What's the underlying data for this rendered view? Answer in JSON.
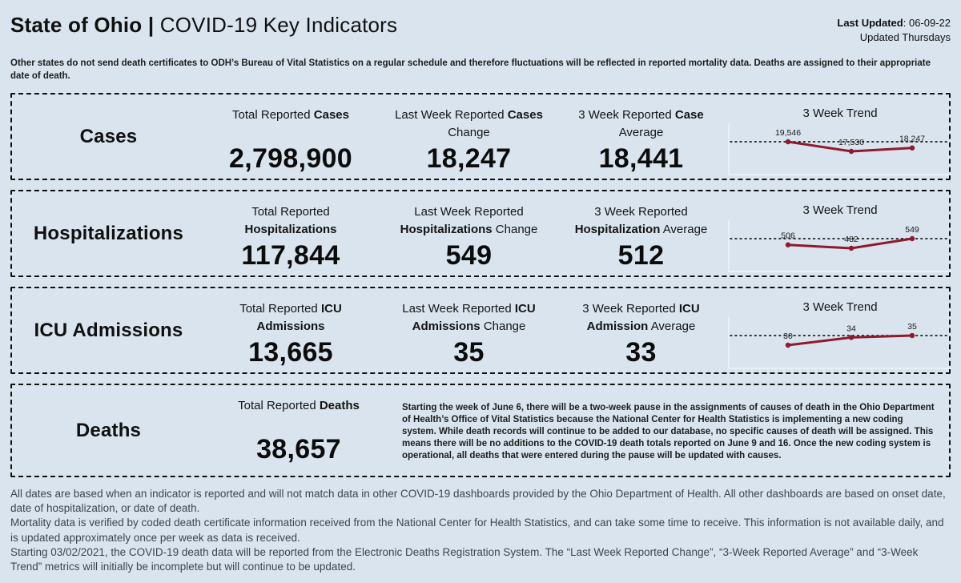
{
  "header": {
    "title_bold": "State of Ohio",
    "title_separator": "|",
    "title_rest": "COVID-19 Key Indicators",
    "last_updated_label": "Last Updated",
    "last_updated_value": ": 06-09-22",
    "updated_frequency": "Updated Thursdays"
  },
  "disclaimer": "Other states do not send death certificates to ODH’s Bureau of Vital Statistics on a regular schedule and therefore fluctuations will be reflected in reported mortality data. Deaths are assigned to their appropriate date of death.",
  "rows": [
    {
      "label": "Cases",
      "trend_title": "3 Week Trend",
      "metrics": [
        {
          "title_pre": "Total Reported ",
          "title_bold": "Cases",
          "title_post": "",
          "value": "2,798,900"
        },
        {
          "title_pre": "Last Week Reported ",
          "title_bold": "Cases",
          "title_post": " Change",
          "value": "18,247"
        },
        {
          "title_pre": "3 Week Reported ",
          "title_bold": "Case",
          "title_post": " Average",
          "value": "18,441"
        }
      ]
    },
    {
      "label": "Hospitalizations",
      "trend_title": "3 Week Trend",
      "metrics": [
        {
          "title_pre": "Total Reported ",
          "title_bold": "Hospitalizations",
          "title_post": "",
          "value": "117,844"
        },
        {
          "title_pre": "Last Week Reported ",
          "title_bold": "Hospitalizations",
          "title_post": " Change",
          "value": "549"
        },
        {
          "title_pre": "3 Week Reported ",
          "title_bold": "Hospitalization",
          "title_post": " Average",
          "value": "512"
        }
      ]
    },
    {
      "label": "ICU Admissions",
      "trend_title": "3 Week Trend",
      "metrics": [
        {
          "title_pre": "Total Reported ",
          "title_bold": "ICU Admissions",
          "title_post": "",
          "value": "13,665"
        },
        {
          "title_pre": "Last Week Reported ",
          "title_bold": "ICU Admissions",
          "title_post": " Change",
          "value": "35"
        },
        {
          "title_pre": "3 Week Reported ",
          "title_bold": "ICU Admission",
          "title_post": " Average",
          "value": "33"
        }
      ]
    },
    {
      "label": "Deaths",
      "metrics": [
        {
          "title_pre": "Total Reported ",
          "title_bold": "Deaths",
          "title_post": "",
          "value": "38,657"
        }
      ],
      "note": "Starting the week of June 6, there will be a two-week pause in the assignments of causes of death in the Ohio Department of Health’s Office of Vital Statistics because the National Center for Health Statistics is implementing a new coding system. While death records will continue to be added to our database, no specific causes of death will be assigned. This means there will be no additions to the COVID-19 death totals reported on June 9 and 16. Once the new coding system is operational, all deaths that were entered during the pause will be updated with causes."
    }
  ],
  "chart_data": [
    {
      "type": "line",
      "row": "Cases",
      "title": "3 Week Trend",
      "values": [
        19546,
        17530,
        18247
      ],
      "labels": [
        "19,546",
        "17,530",
        "18,247"
      ],
      "reference_line": "dotted horizontal at max value",
      "line_color": "#8f1a2e",
      "dot_color": "#8f1a2e",
      "label_color": "#1b1b1b",
      "axis_color": "#eef5fa"
    },
    {
      "type": "line",
      "row": "Hospitalizations",
      "title": "3 Week Trend",
      "values": [
        506,
        482,
        549
      ],
      "labels": [
        "506",
        "482",
        "549"
      ],
      "reference_line": "dotted horizontal at max value",
      "line_color": "#8f1a2e",
      "dot_color": "#8f1a2e",
      "label_color": "#1b1b1b",
      "axis_color": "#eef5fa"
    },
    {
      "type": "line",
      "row": "ICU Admissions",
      "title": "3 Week Trend",
      "values": [
        30,
        34,
        35
      ],
      "labels": [
        "30",
        "34",
        "35"
      ],
      "reference_line": "dotted horizontal at max value",
      "line_color": "#8f1a2e",
      "dot_color": "#8f1a2e",
      "label_color": "#1b1b1b",
      "axis_color": "#eef5fa"
    }
  ],
  "footer": {
    "paragraphs": [
      "All dates are based when an indicator is reported and will not match data in other COVID-19 dashboards provided by the Ohio Department of Health. All other dashboards are based on onset date, date of hospitalization, or date of death.",
      "Mortality data is verified by coded death certificate information received from the National Center for Health Statistics, and can take some time to receive. This information is not available daily, and is updated approximately once per week as data is received.",
      "Starting 03/02/2021, the COVID-19 death data will be reported from the Electronic Deaths Registration System. The “Last Week Reported Change”, “3-Week Reported Average” and “3-Week Trend” metrics will initially be incomplete but will continue to be updated."
    ]
  },
  "colors": {
    "background": "#d9e4ee",
    "panel_border": "#0e0e0e",
    "trend_line": "#8f1a2e",
    "footer_text": "#3b4650"
  }
}
